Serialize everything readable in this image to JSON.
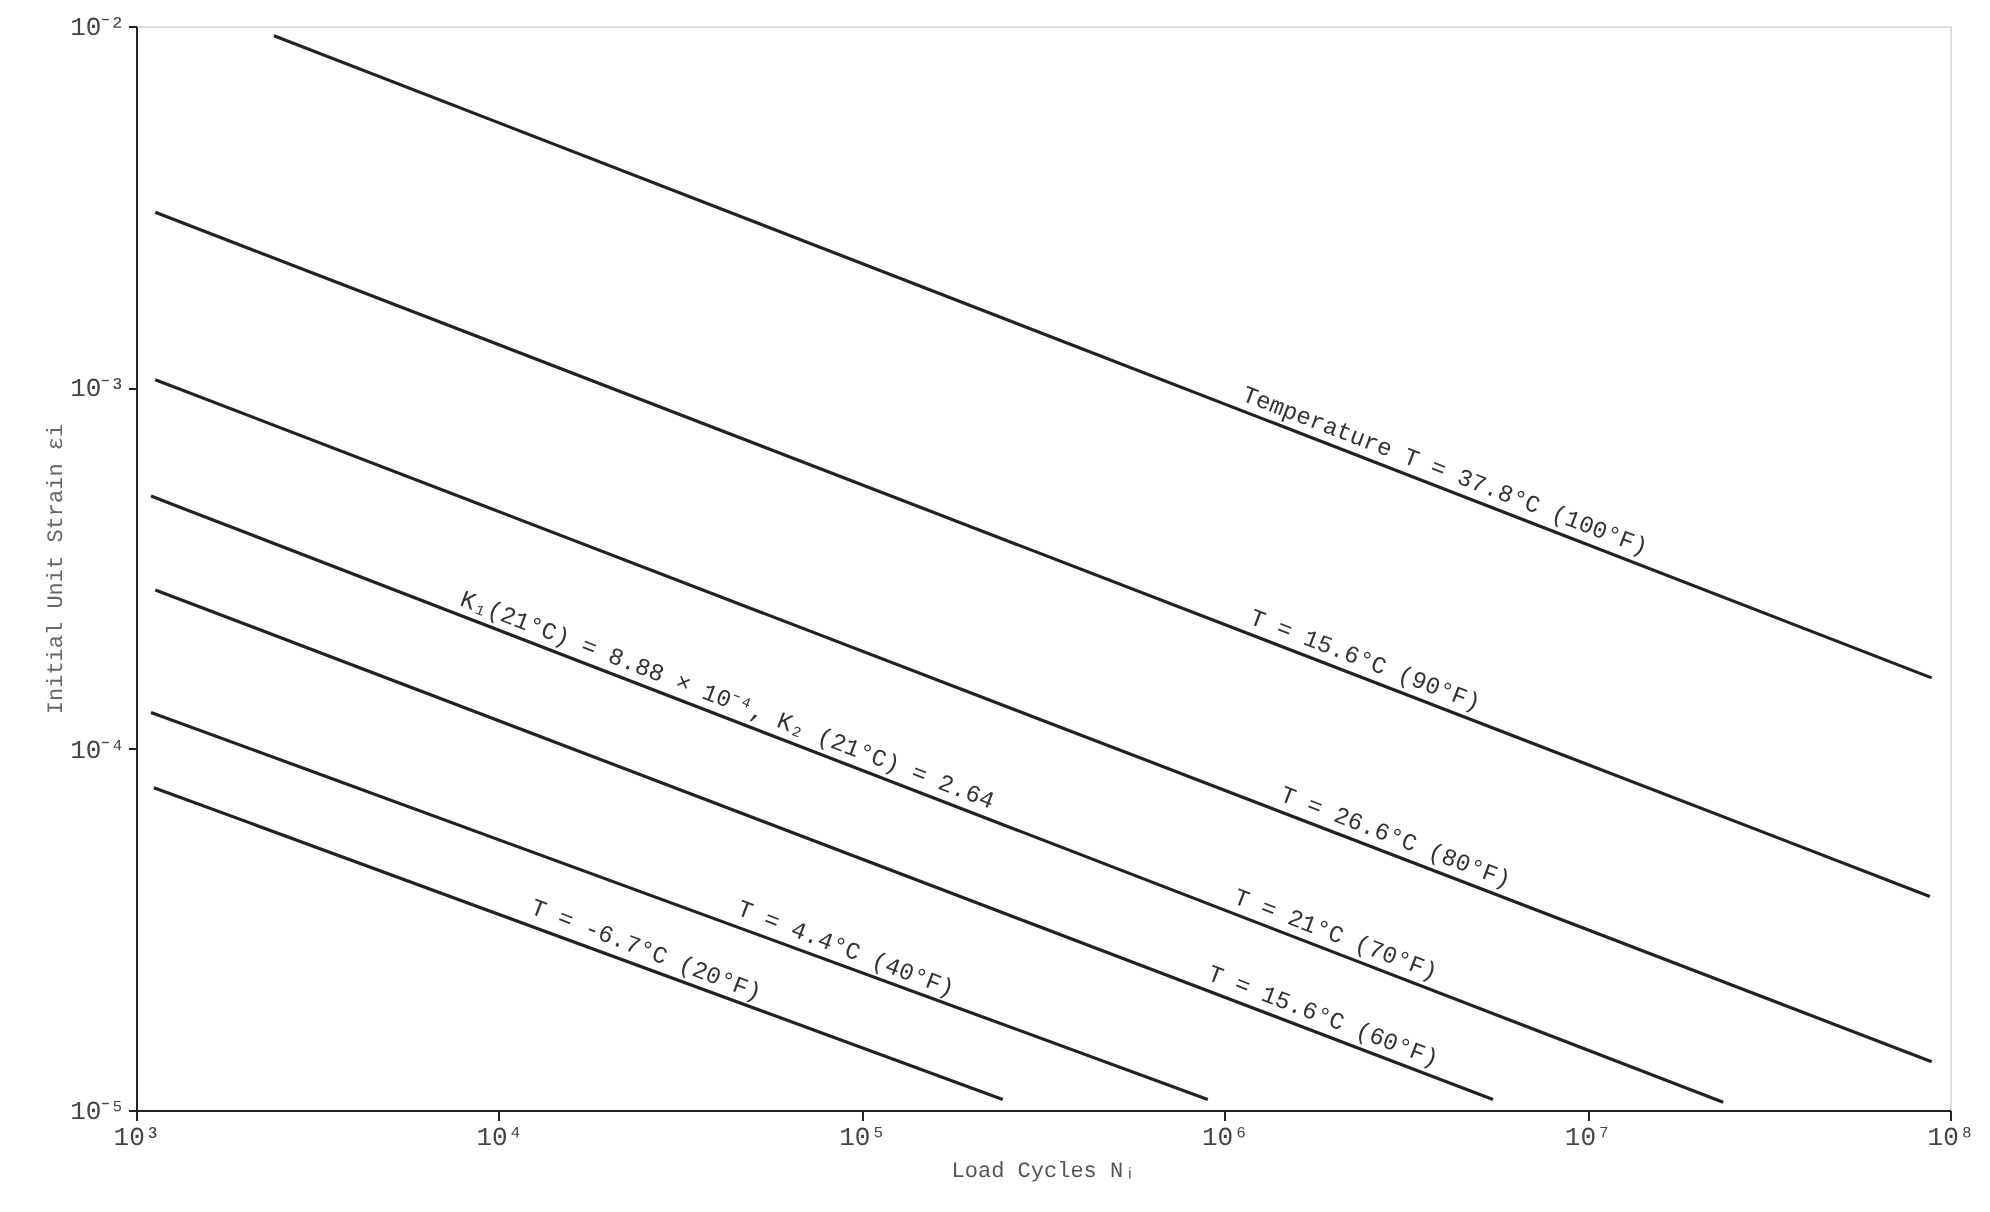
{
  "chart_data": {
    "type": "line",
    "xlabel": "Load Cycles Nᵢ",
    "ylabel": "Initial Unit Strain εi",
    "log": "xy",
    "grid": false,
    "marker": "none",
    "line_style": "solid",
    "xlim": [
      1000,
      100000000
    ],
    "ylim": [
      1e-05,
      0.01
    ],
    "xticks": [
      {
        "value": 1000,
        "label": "10³"
      },
      {
        "value": 10000,
        "label": "10⁴"
      },
      {
        "value": 100000,
        "label": "10⁵"
      },
      {
        "value": 1000000,
        "label": "10⁶"
      },
      {
        "value": 10000000,
        "label": "10⁷"
      },
      {
        "value": 100000000,
        "label": "10⁸"
      }
    ],
    "yticks": [
      {
        "value": 1e-05,
        "label": "10⁻⁵"
      },
      {
        "value": 0.0001,
        "label": "10⁻⁴"
      },
      {
        "value": 0.001,
        "label": "10⁻³"
      },
      {
        "value": 0.01,
        "label": "10⁻²"
      }
    ],
    "series": [
      {
        "color": "#222222",
        "x": [
          2400,
          89000000
        ],
        "values": [
          0.0094,
          0.000157
        ]
      },
      {
        "color": "#222222",
        "x": [
          1130,
          88000000
        ],
        "values": [
          0.00305,
          3.9e-05
        ]
      },
      {
        "color": "#222222",
        "x": [
          1130,
          89000000
        ],
        "values": [
          0.00105,
          1.36e-05
        ]
      },
      {
        "color": "#222222",
        "x": [
          1100,
          23700000
        ],
        "values": [
          0.0005,
          1.05e-05
        ]
      },
      {
        "color": "#222222",
        "x": [
          1130,
          5500000
        ],
        "values": [
          0.000275,
          1.07e-05
        ]
      },
      {
        "color": "#222222",
        "x": [
          1100,
          900000
        ],
        "values": [
          0.000126,
          1.07e-05
        ]
      },
      {
        "color": "#222222",
        "x": [
          1120,
          245000
        ],
        "values": [
          7.8e-05,
          1.07e-05
        ]
      }
    ],
    "annotations": [
      {
        "text": "Temperature T = 37.8°C (100°F)",
        "x": 3900000,
        "y": 0.00053
      },
      {
        "text": "T = 15.6°C (90°F)",
        "x": 2350000,
        "y": 0.0001585
      },
      {
        "text": "K₁(21°C) = 8.88 × 10⁻⁴, K₂ (21°C) = 2.64",
        "x": 41000,
        "y": 0.000123
      },
      {
        "text": "T = 26.6°C (80°F)",
        "x": 2850000,
        "y": 5.13e-05
      },
      {
        "text": "T = 21°C (70°F)",
        "x": 1950000,
        "y": 2.76e-05
      },
      {
        "text": "T = 15.6°C (60°F)",
        "x": 1800000,
        "y": 1.64e-05
      },
      {
        "text": "T = 4.4°C (40°F)",
        "x": 87000,
        "y": 2.52e-05
      },
      {
        "text": "T = -6.7°C (20°F)",
        "x": 24500,
        "y": 2.5e-05
      }
    ]
  }
}
